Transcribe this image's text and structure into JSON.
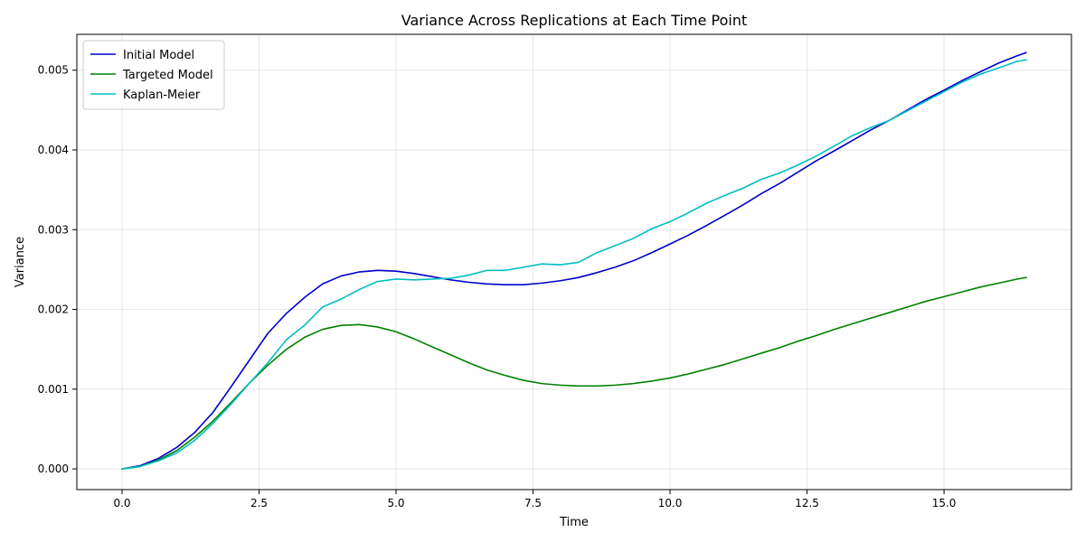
{
  "chart_data": {
    "type": "line",
    "title": "Variance Across Replications at Each Time Point",
    "xlabel": "Time",
    "ylabel": "Variance",
    "xlim": [
      -0.825,
      17.325
    ],
    "ylim": [
      -0.00026,
      0.00545
    ],
    "xticks": [
      0.0,
      2.5,
      5.0,
      7.5,
      10.0,
      12.5,
      15.0
    ],
    "xtick_labels": [
      "0.0",
      "2.5",
      "5.0",
      "7.5",
      "10.0",
      "12.5",
      "15.0"
    ],
    "yticks": [
      0.0,
      0.001,
      0.002,
      0.003,
      0.004,
      0.005
    ],
    "ytick_labels": [
      "0.000",
      "0.001",
      "0.002",
      "0.003",
      "0.004",
      "0.005"
    ],
    "grid": true,
    "legend_position": "top-left",
    "series": [
      {
        "name": "Initial Model",
        "color": "#0000cc",
        "x": [
          0,
          0.33,
          0.66,
          1.0,
          1.33,
          1.66,
          2.0,
          2.33,
          2.66,
          3.0,
          3.33,
          3.66,
          4.0,
          4.33,
          4.66,
          5.0,
          5.33,
          5.66,
          6.0,
          6.33,
          6.66,
          7.0,
          7.33,
          7.66,
          8.0,
          8.33,
          8.66,
          9.0,
          9.33,
          9.66,
          10.0,
          10.33,
          10.66,
          11.0,
          11.33,
          11.66,
          12.0,
          12.33,
          12.66,
          13.0,
          13.33,
          13.66,
          14.0,
          14.33,
          14.66,
          15.0,
          15.33,
          15.66,
          16.0,
          16.33,
          16.5
        ],
        "values": [
          0.0,
          4e-05,
          0.00013,
          0.00027,
          0.00046,
          0.00071,
          0.00104,
          0.00137,
          0.0017,
          0.00195,
          0.00215,
          0.00232,
          0.00242,
          0.00247,
          0.00249,
          0.00248,
          0.00245,
          0.00241,
          0.00237,
          0.00234,
          0.00232,
          0.00231,
          0.00231,
          0.00233,
          0.00236,
          0.0024,
          0.00246,
          0.00253,
          0.00261,
          0.00271,
          0.00282,
          0.00293,
          0.00305,
          0.00318,
          0.00331,
          0.00345,
          0.00358,
          0.00372,
          0.00386,
          0.00399,
          0.00412,
          0.00425,
          0.00437,
          0.0045,
          0.00463,
          0.00475,
          0.00487,
          0.00498,
          0.00509,
          0.00518,
          0.00522
        ]
      },
      {
        "name": "Targeted Model",
        "color": "#008000",
        "x": [
          0,
          0.33,
          0.66,
          1.0,
          1.33,
          1.66,
          2.0,
          2.33,
          2.66,
          3.0,
          3.33,
          3.66,
          4.0,
          4.33,
          4.66,
          5.0,
          5.33,
          5.66,
          6.0,
          6.33,
          6.66,
          7.0,
          7.33,
          7.66,
          8.0,
          8.33,
          8.66,
          9.0,
          9.33,
          9.66,
          10.0,
          10.33,
          10.66,
          11.0,
          11.33,
          11.66,
          12.0,
          12.33,
          12.66,
          13.0,
          13.33,
          13.66,
          14.0,
          14.33,
          14.66,
          15.0,
          15.33,
          15.66,
          16.0,
          16.33,
          16.5
        ],
        "values": [
          0.0,
          3e-05,
          0.00011,
          0.00023,
          0.0004,
          0.0006,
          0.00084,
          0.00108,
          0.0013,
          0.0015,
          0.00165,
          0.00175,
          0.0018,
          0.00181,
          0.00178,
          0.00172,
          0.00163,
          0.00153,
          0.00143,
          0.00133,
          0.00124,
          0.00117,
          0.00111,
          0.00107,
          0.00105,
          0.00104,
          0.00104,
          0.00105,
          0.00107,
          0.0011,
          0.00114,
          0.00119,
          0.00125,
          0.00131,
          0.00138,
          0.00145,
          0.00152,
          0.0016,
          0.00167,
          0.00175,
          0.00182,
          0.00189,
          0.00196,
          0.00203,
          0.0021,
          0.00216,
          0.00222,
          0.00228,
          0.00233,
          0.00238,
          0.0024
        ]
      },
      {
        "name": "Kaplan-Meier",
        "color": "#00bfbf",
        "x": [
          0,
          0.33,
          0.66,
          1.0,
          1.33,
          1.66,
          2.0,
          2.33,
          2.66,
          3.0,
          3.33,
          3.66,
          4.0,
          4.33,
          4.66,
          5.0,
          5.33,
          5.66,
          6.0,
          6.33,
          6.66,
          7.0,
          7.33,
          7.66,
          8.0,
          8.33,
          8.66,
          9.0,
          9.33,
          9.66,
          10.0,
          10.33,
          10.66,
          11.0,
          11.33,
          11.66,
          12.0,
          12.33,
          12.66,
          13.0,
          13.33,
          13.66,
          14.0,
          14.33,
          14.66,
          15.0,
          15.33,
          15.66,
          16.0,
          16.33,
          16.5
        ],
        "values": [
          0.0,
          3e-05,
          0.0001,
          0.0002,
          0.00036,
          0.00057,
          0.00082,
          0.00108,
          0.00133,
          0.00162,
          0.0018,
          0.00203,
          0.00213,
          0.00225,
          0.00235,
          0.00238,
          0.00237,
          0.00238,
          0.00239,
          0.00243,
          0.00249,
          0.00249,
          0.00253,
          0.00257,
          0.00256,
          0.00259,
          0.00271,
          0.0028,
          0.00289,
          0.00301,
          0.0031,
          0.00321,
          0.00333,
          0.00343,
          0.00352,
          0.00363,
          0.00371,
          0.00381,
          0.00392,
          0.00405,
          0.00418,
          0.00428,
          0.00437,
          0.00449,
          0.00461,
          0.00473,
          0.00485,
          0.00495,
          0.00503,
          0.00511,
          0.00513
        ]
      }
    ]
  }
}
